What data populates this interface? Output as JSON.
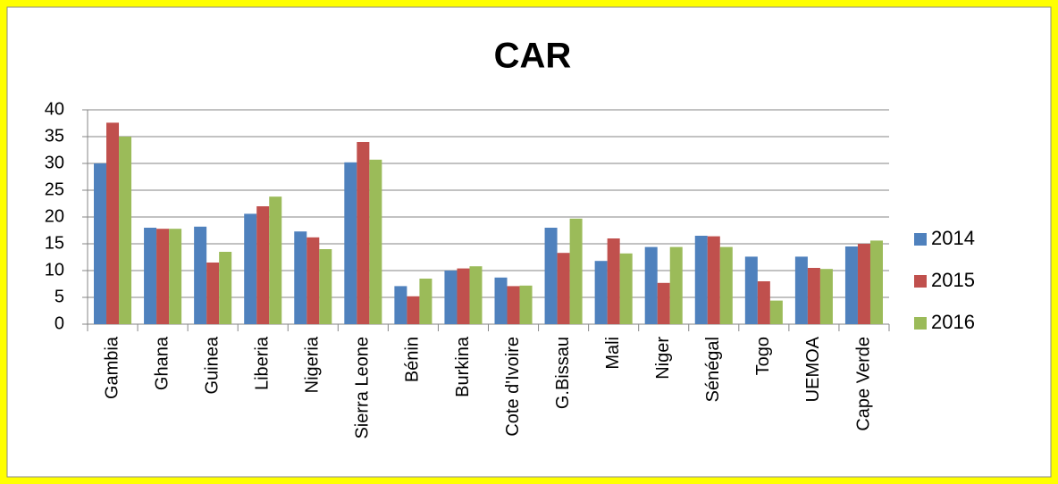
{
  "chart_data": {
    "type": "bar",
    "title": "CAR",
    "categories": [
      "Gambia",
      "Ghana",
      "Guinea",
      "Liberia",
      "Nigeria",
      "Sierra Leone",
      "Bénin",
      "Burkina",
      "Cote d'Ivoire",
      "G.Bissau",
      "Mali",
      "Niger",
      "Sénégal",
      "Togo",
      "UEMOA",
      "Cape Verde"
    ],
    "series": [
      {
        "name": "2014",
        "color": "#4f81bd",
        "values": [
          30,
          18,
          18.2,
          20.6,
          17.3,
          30.2,
          7.1,
          10,
          8.7,
          18,
          11.8,
          14.4,
          16.5,
          12.6,
          12.6,
          14.5
        ]
      },
      {
        "name": "2015",
        "color": "#c0504d",
        "values": [
          37.6,
          17.8,
          11.5,
          22,
          16.2,
          34,
          5.2,
          10.4,
          7.1,
          13.3,
          16,
          7.7,
          16.4,
          8,
          10.5,
          15
        ]
      },
      {
        "name": "2016",
        "color": "#9bbb59",
        "values": [
          35,
          17.8,
          13.5,
          23.8,
          14,
          30.7,
          8.5,
          10.8,
          7.2,
          19.7,
          13.2,
          14.4,
          14.4,
          4.4,
          10.3,
          15.6
        ]
      }
    ],
    "ylim": [
      0,
      40
    ],
    "yticks": [
      0,
      5,
      10,
      15,
      20,
      25,
      30,
      35,
      40
    ],
    "grid": true,
    "legend": "right"
  }
}
